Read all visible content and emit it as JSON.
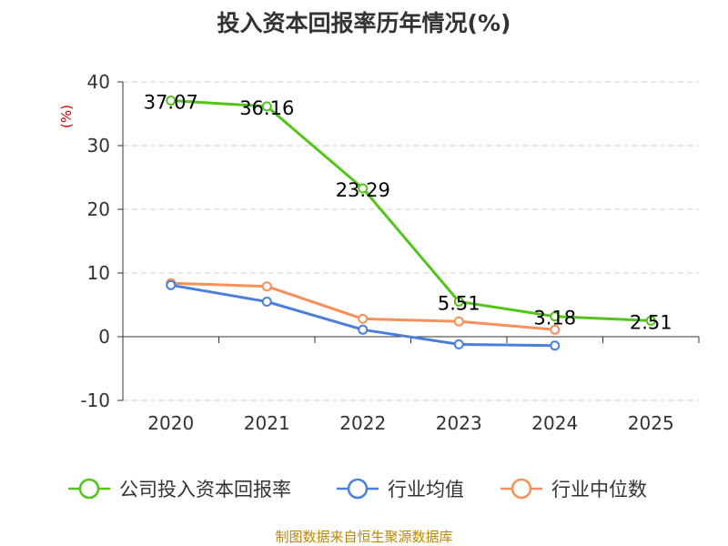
{
  "chart_data": {
    "type": "line",
    "title": "投入资本回报率历年情况(%)",
    "ylabel": "(%)",
    "xlabel": "",
    "categories": [
      "2020",
      "2021",
      "2022",
      "2023",
      "2024",
      "2025"
    ],
    "ylim": [
      -10,
      40
    ],
    "yticks": [
      -10,
      0,
      10,
      20,
      30,
      40
    ],
    "grid": true,
    "legend_position": "bottom",
    "series": [
      {
        "name": "公司投入资本回报率",
        "color": "#52c41a",
        "values": [
          37.07,
          36.16,
          23.29,
          5.51,
          3.18,
          2.51
        ],
        "labels": [
          "37.07",
          "36.16",
          "23.29",
          "5.51",
          "3.18",
          "2.51"
        ]
      },
      {
        "name": "行业均值",
        "color": "#4a7fdb",
        "values": [
          8.1,
          5.5,
          1.1,
          -1.2,
          -1.4,
          null
        ],
        "labels": null
      },
      {
        "name": "行业中位数",
        "color": "#f4915c",
        "values": [
          8.4,
          7.9,
          2.8,
          2.4,
          1.1,
          null
        ],
        "labels": null
      }
    ],
    "unit_color": "#cc0000"
  },
  "footer": {
    "source": "制图数据来自恒生聚源数据库"
  }
}
